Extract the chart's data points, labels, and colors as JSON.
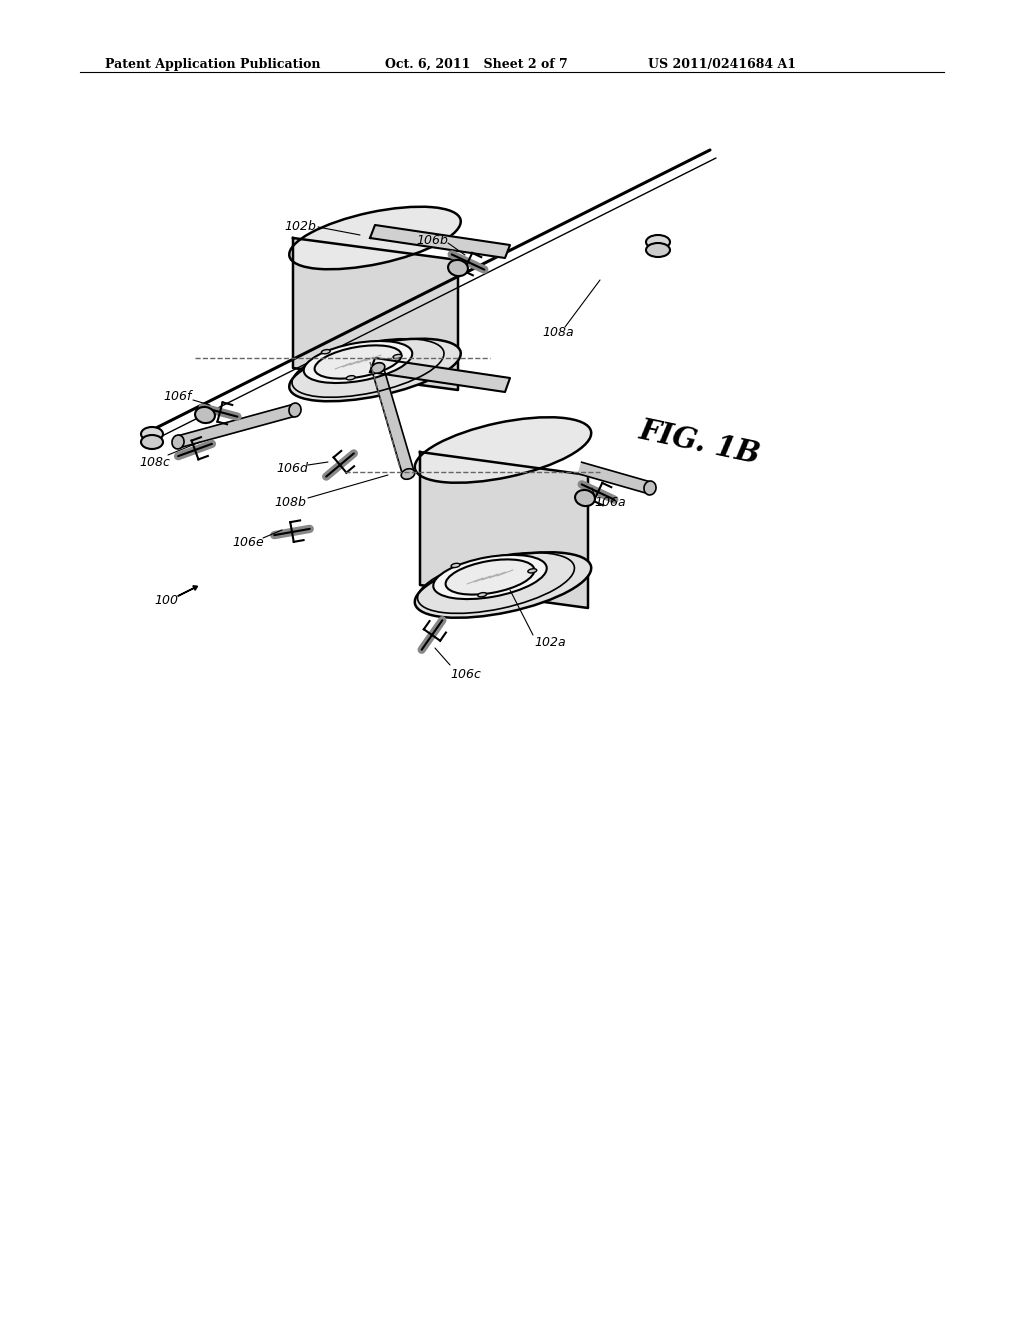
{
  "bg_color": "#ffffff",
  "line_color": "#000000",
  "header_left": "Patent Application Publication",
  "header_mid": "Oct. 6, 2011   Sheet 2 of 7",
  "header_right": "US 2011/0241684 A1",
  "fig_label": "FIG. 1B",
  "part_label": "100"
}
